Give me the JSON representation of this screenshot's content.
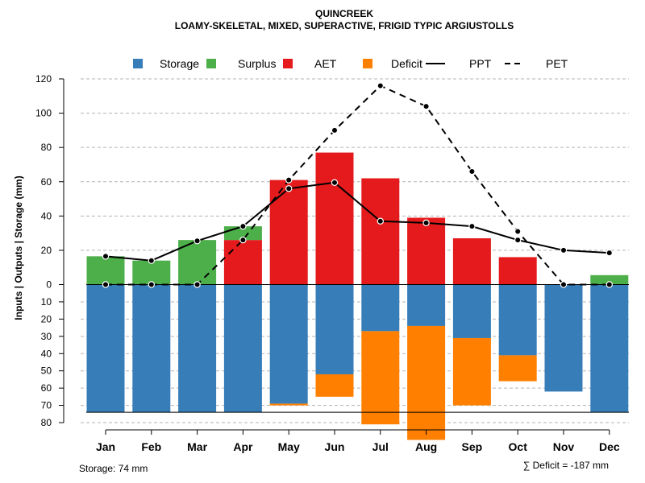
{
  "chart_data": {
    "type": "bar",
    "title": "QUINCREEK",
    "subtitle": "LOAMY-SKELETAL, MIXED, SUPERACTIVE, FRIGID TYPIC ARGIUSTOLLS",
    "ylabel": "Inputs | Outputs | Storage    (mm)",
    "categories": [
      "Jan",
      "Feb",
      "Mar",
      "Apr",
      "May",
      "Jun",
      "Jul",
      "Aug",
      "Sep",
      "Oct",
      "Nov",
      "Dec"
    ],
    "upper_ylim": [
      0,
      120
    ],
    "upper_ticks": [
      "0",
      "20",
      "40",
      "60",
      "80",
      "100",
      "120"
    ],
    "lower_ylim": [
      0,
      80
    ],
    "lower_ticks": [
      "10",
      "20",
      "30",
      "40",
      "50",
      "60",
      "70",
      "80"
    ],
    "legend": [
      {
        "key": "storage",
        "label": "Storage",
        "kind": "box",
        "color": "#377EB8"
      },
      {
        "key": "surplus",
        "label": "Surplus",
        "kind": "box",
        "color": "#4DAF4A"
      },
      {
        "key": "aet",
        "label": "AET",
        "kind": "box",
        "color": "#E41A1C"
      },
      {
        "key": "deficit",
        "label": "Deficit",
        "kind": "box",
        "color": "#FF7F00"
      },
      {
        "key": "ppt",
        "label": "PPT",
        "kind": "solid",
        "color": "#000000"
      },
      {
        "key": "pet",
        "label": "PET",
        "kind": "dashed",
        "color": "#000000"
      }
    ],
    "series": [
      {
        "name": "AET",
        "values": [
          0,
          0,
          0,
          26,
          61,
          77,
          62,
          39,
          27,
          16,
          0,
          0
        ]
      },
      {
        "name": "Surplus",
        "values": [
          16.5,
          14,
          26,
          8,
          0,
          0,
          0,
          0,
          0,
          0,
          0,
          5.5
        ]
      },
      {
        "name": "Storage",
        "values": [
          74,
          74,
          74,
          74,
          69,
          52,
          27,
          24,
          31,
          41,
          62,
          74
        ]
      },
      {
        "name": "Deficit",
        "values": [
          0,
          0,
          0,
          0,
          1,
          13,
          54,
          66,
          39,
          15,
          0,
          0
        ]
      },
      {
        "name": "PPT",
        "values": [
          16.5,
          14,
          25.5,
          34,
          56,
          59.5,
          37,
          36,
          34,
          26,
          20,
          18.5
        ]
      },
      {
        "name": "PET",
        "values": [
          0,
          0,
          0,
          26,
          61,
          90,
          116,
          104,
          66,
          31,
          0,
          0
        ]
      }
    ],
    "storage_capacity": 74,
    "storage_note": "Storage: 74 mm",
    "deficit_note": "∑ Deficit = -187 mm"
  }
}
